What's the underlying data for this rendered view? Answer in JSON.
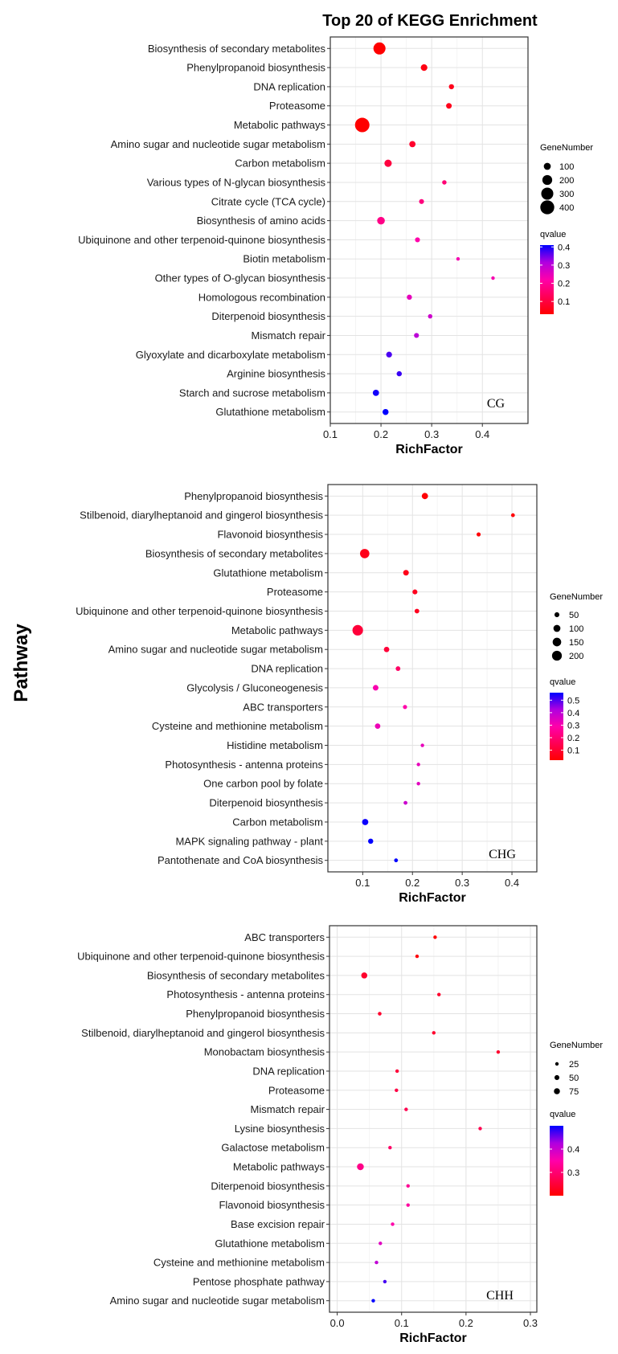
{
  "title": "Top 20 of KEGG Enrichment",
  "ylabel": "Pathway",
  "chart_data": [
    {
      "type": "scatter",
      "panel_label": "CG",
      "xlabel": "RichFactor",
      "xlim": [
        0.1,
        0.49
      ],
      "xticks": [
        0.1,
        0.2,
        0.3,
        0.4
      ],
      "xtick_labels": [
        "0.1",
        "0.2",
        "0.3",
        "0.4"
      ],
      "size_legend": {
        "title": "GeneNumber",
        "values": [
          100,
          200,
          300,
          400
        ]
      },
      "color_legend": {
        "title": "qvalue",
        "min": 0.03,
        "max": 0.41,
        "ticks": [
          0.1,
          0.2,
          0.3,
          0.4
        ],
        "tick_labels": [
          "0.1",
          "0.2",
          "0.3",
          "0.4"
        ]
      },
      "points": [
        {
          "pathway": "Biosynthesis of secondary metabolites",
          "rich_factor": 0.197,
          "gene_number": 300,
          "qvalue": 0.03
        },
        {
          "pathway": "Phenylpropanoid biosynthesis",
          "rich_factor": 0.285,
          "gene_number": 90,
          "qvalue": 0.05
        },
        {
          "pathway": "DNA replication",
          "rich_factor": 0.339,
          "gene_number": 55,
          "qvalue": 0.06
        },
        {
          "pathway": "Proteasome",
          "rich_factor": 0.334,
          "gene_number": 65,
          "qvalue": 0.06
        },
        {
          "pathway": "Metabolic pathways",
          "rich_factor": 0.163,
          "gene_number": 430,
          "qvalue": 0.03
        },
        {
          "pathway": "Amino sugar and nucleotide sugar metabolism",
          "rich_factor": 0.262,
          "gene_number": 80,
          "qvalue": 0.08
        },
        {
          "pathway": "Carbon metabolism",
          "rich_factor": 0.214,
          "gene_number": 110,
          "qvalue": 0.1
        },
        {
          "pathway": "Various types of N-glycan biosynthesis",
          "rich_factor": 0.325,
          "gene_number": 40,
          "qvalue": 0.16
        },
        {
          "pathway": "Citrate cycle (TCA cycle)",
          "rich_factor": 0.28,
          "gene_number": 50,
          "qvalue": 0.17
        },
        {
          "pathway": "Biosynthesis of amino acids",
          "rich_factor": 0.2,
          "gene_number": 120,
          "qvalue": 0.18
        },
        {
          "pathway": "Ubiquinone and other terpenoid-quinone biosynthesis",
          "rich_factor": 0.272,
          "gene_number": 50,
          "qvalue": 0.22
        },
        {
          "pathway": "Biotin metabolism",
          "rich_factor": 0.352,
          "gene_number": 25,
          "qvalue": 0.23
        },
        {
          "pathway": "Other types of O-glycan biosynthesis",
          "rich_factor": 0.421,
          "gene_number": 15,
          "qvalue": 0.23
        },
        {
          "pathway": "Homologous recombination",
          "rich_factor": 0.256,
          "gene_number": 55,
          "qvalue": 0.25
        },
        {
          "pathway": "Diterpenoid biosynthesis",
          "rich_factor": 0.297,
          "gene_number": 40,
          "qvalue": 0.28
        },
        {
          "pathway": "Mismatch repair",
          "rich_factor": 0.27,
          "gene_number": 50,
          "qvalue": 0.3
        },
        {
          "pathway": "Glyoxylate and dicarboxylate metabolism",
          "rich_factor": 0.216,
          "gene_number": 70,
          "qvalue": 0.37
        },
        {
          "pathway": "Arginine biosynthesis",
          "rich_factor": 0.236,
          "gene_number": 55,
          "qvalue": 0.38
        },
        {
          "pathway": "Starch and sucrose metabolism",
          "rich_factor": 0.19,
          "gene_number": 80,
          "qvalue": 0.4
        },
        {
          "pathway": "Glutathione metabolism",
          "rich_factor": 0.209,
          "gene_number": 75,
          "qvalue": 0.41
        }
      ]
    },
    {
      "type": "scatter",
      "panel_label": "CHG",
      "xlabel": "RichFactor",
      "xlim": [
        0.03,
        0.45
      ],
      "xticks": [
        0.1,
        0.2,
        0.3,
        0.4
      ],
      "xtick_labels": [
        "0.1",
        "0.2",
        "0.3",
        "0.4"
      ],
      "size_legend": {
        "title": "GeneNumber",
        "values": [
          50,
          100,
          150,
          200
        ]
      },
      "color_legend": {
        "title": "qvalue",
        "min": 0.02,
        "max": 0.56,
        "ticks": [
          0.1,
          0.2,
          0.3,
          0.4,
          0.5
        ],
        "tick_labels": [
          "0.1",
          "0.2",
          "0.3",
          "0.4",
          "0.5"
        ]
      },
      "points": [
        {
          "pathway": "Phenylpropanoid biosynthesis",
          "rich_factor": 0.225,
          "gene_number": 80,
          "qvalue": 0.03
        },
        {
          "pathway": "Stilbenoid, diarylheptanoid and gingerol biosynthesis",
          "rich_factor": 0.402,
          "gene_number": 30,
          "qvalue": 0.03
        },
        {
          "pathway": "Flavonoid biosynthesis",
          "rich_factor": 0.333,
          "gene_number": 35,
          "qvalue": 0.03
        },
        {
          "pathway": "Biosynthesis of secondary metabolites",
          "rich_factor": 0.104,
          "gene_number": 180,
          "qvalue": 0.06
        },
        {
          "pathway": "Glutathione metabolism",
          "rich_factor": 0.187,
          "gene_number": 65,
          "qvalue": 0.06
        },
        {
          "pathway": "Proteasome",
          "rich_factor": 0.205,
          "gene_number": 50,
          "qvalue": 0.07
        },
        {
          "pathway": "Ubiquinone and other terpenoid-quinone biosynthesis",
          "rich_factor": 0.209,
          "gene_number": 45,
          "qvalue": 0.07
        },
        {
          "pathway": "Metabolic pathways",
          "rich_factor": 0.09,
          "gene_number": 230,
          "qvalue": 0.11
        },
        {
          "pathway": "Amino sugar and nucleotide sugar metabolism",
          "rich_factor": 0.148,
          "gene_number": 60,
          "qvalue": 0.11
        },
        {
          "pathway": "DNA replication",
          "rich_factor": 0.171,
          "gene_number": 45,
          "qvalue": 0.18
        },
        {
          "pathway": "Glycolysis / Gluconeogenesis",
          "rich_factor": 0.126,
          "gene_number": 65,
          "qvalue": 0.3
        },
        {
          "pathway": "ABC transporters",
          "rich_factor": 0.185,
          "gene_number": 35,
          "qvalue": 0.29
        },
        {
          "pathway": "Cysteine and methionine metabolism",
          "rich_factor": 0.13,
          "gene_number": 60,
          "qvalue": 0.32
        },
        {
          "pathway": "Histidine metabolism",
          "rich_factor": 0.22,
          "gene_number": 20,
          "qvalue": 0.33
        },
        {
          "pathway": "Photosynthesis - antenna proteins",
          "rich_factor": 0.212,
          "gene_number": 25,
          "qvalue": 0.33
        },
        {
          "pathway": "One carbon pool by folate",
          "rich_factor": 0.212,
          "gene_number": 25,
          "qvalue": 0.34
        },
        {
          "pathway": "Diterpenoid biosynthesis",
          "rich_factor": 0.186,
          "gene_number": 30,
          "qvalue": 0.38
        },
        {
          "pathway": "Carbon metabolism",
          "rich_factor": 0.105,
          "gene_number": 80,
          "qvalue": 0.55
        },
        {
          "pathway": "MAPK signaling pathway - plant",
          "rich_factor": 0.116,
          "gene_number": 55,
          "qvalue": 0.56
        },
        {
          "pathway": "Pantothenate and CoA biosynthesis",
          "rich_factor": 0.167,
          "gene_number": 30,
          "qvalue": 0.56
        }
      ]
    },
    {
      "type": "scatter",
      "panel_label": "CHH",
      "xlabel": "RichFactor",
      "xlim": [
        -0.012,
        0.31
      ],
      "xticks": [
        0.0,
        0.1,
        0.2,
        0.3
      ],
      "xtick_labels": [
        "0.0",
        "0.1",
        "0.2",
        "0.3"
      ],
      "size_legend": {
        "title": "GeneNumber",
        "values": [
          25,
          50,
          75
        ]
      },
      "color_legend": {
        "title": "qvalue",
        "min": 0.2,
        "max": 0.5,
        "ticks": [
          0.3,
          0.4
        ],
        "tick_labels": [
          "0.3",
          "0.4"
        ]
      },
      "points": [
        {
          "pathway": "ABC transporters",
          "rich_factor": 0.152,
          "gene_number": 22,
          "qvalue": 0.2
        },
        {
          "pathway": "Ubiquinone and other terpenoid-quinone biosynthesis",
          "rich_factor": 0.124,
          "gene_number": 22,
          "qvalue": 0.21
        },
        {
          "pathway": "Biosynthesis of secondary metabolites",
          "rich_factor": 0.042,
          "gene_number": 75,
          "qvalue": 0.24
        },
        {
          "pathway": "Photosynthesis - antenna proteins",
          "rich_factor": 0.158,
          "gene_number": 12,
          "qvalue": 0.24
        },
        {
          "pathway": "Phenylpropanoid biosynthesis",
          "rich_factor": 0.066,
          "gene_number": 28,
          "qvalue": 0.24
        },
        {
          "pathway": "Stilbenoid, diarylheptanoid and gingerol biosynthesis",
          "rich_factor": 0.15,
          "gene_number": 8,
          "qvalue": 0.24
        },
        {
          "pathway": "Monobactam biosynthesis",
          "rich_factor": 0.25,
          "gene_number": 3,
          "qvalue": 0.24
        },
        {
          "pathway": "DNA replication",
          "rich_factor": 0.093,
          "gene_number": 18,
          "qvalue": 0.25
        },
        {
          "pathway": "Proteasome",
          "rich_factor": 0.092,
          "gene_number": 18,
          "qvalue": 0.26
        },
        {
          "pathway": "Mismatch repair",
          "rich_factor": 0.107,
          "gene_number": 12,
          "qvalue": 0.27
        },
        {
          "pathway": "Lysine biosynthesis",
          "rich_factor": 0.222,
          "gene_number": 3,
          "qvalue": 0.27
        },
        {
          "pathway": "Galactose metabolism",
          "rich_factor": 0.082,
          "gene_number": 18,
          "qvalue": 0.29
        },
        {
          "pathway": "Metabolic pathways",
          "rich_factor": 0.036,
          "gene_number": 95,
          "qvalue": 0.32
        },
        {
          "pathway": "Diterpenoid biosynthesis",
          "rich_factor": 0.11,
          "gene_number": 10,
          "qvalue": 0.33
        },
        {
          "pathway": "Flavonoid biosynthesis",
          "rich_factor": 0.11,
          "gene_number": 10,
          "qvalue": 0.34
        },
        {
          "pathway": "Base excision repair",
          "rich_factor": 0.086,
          "gene_number": 15,
          "qvalue": 0.35
        },
        {
          "pathway": "Glutathione metabolism",
          "rich_factor": 0.067,
          "gene_number": 20,
          "qvalue": 0.38
        },
        {
          "pathway": "Cysteine and methionine metabolism",
          "rich_factor": 0.061,
          "gene_number": 22,
          "qvalue": 0.41
        },
        {
          "pathway": "Pentose phosphate pathway",
          "rich_factor": 0.074,
          "gene_number": 15,
          "qvalue": 0.47
        },
        {
          "pathway": "Amino sugar and nucleotide sugar metabolism",
          "rich_factor": 0.056,
          "gene_number": 20,
          "qvalue": 0.5
        }
      ]
    }
  ]
}
